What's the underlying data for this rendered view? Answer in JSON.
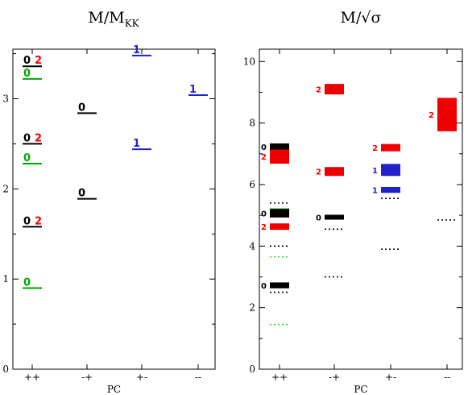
{
  "colors": {
    "black": "#000000",
    "green": "#00aa00",
    "red": "#ee0000",
    "blue": "#2222cc",
    "lightgreen": "#33dd33"
  },
  "chart_data": [
    {
      "type": "scatter",
      "title": "M/M",
      "title_sub": "KK",
      "xlabel": "PC",
      "categories": [
        "++",
        "-+",
        "+-",
        "--"
      ],
      "ylim": [
        0,
        3.55
      ],
      "yticks": [
        "0",
        "1",
        "2",
        "3"
      ],
      "levels": [
        {
          "cat": 0,
          "y": 3.36,
          "color": "black",
          "labels": [
            {
              "t": "0",
              "c": "black"
            },
            {
              "t": "2",
              "c": "red"
            }
          ]
        },
        {
          "cat": 0,
          "y": 3.22,
          "color": "green",
          "labels": [
            {
              "t": "0",
              "c": "green"
            }
          ]
        },
        {
          "cat": 0,
          "y": 2.5,
          "color": "black",
          "labels": [
            {
              "t": "0",
              "c": "black"
            },
            {
              "t": "2",
              "c": "red"
            }
          ]
        },
        {
          "cat": 0,
          "y": 2.28,
          "color": "green",
          "labels": [
            {
              "t": "0",
              "c": "green"
            }
          ]
        },
        {
          "cat": 0,
          "y": 1.58,
          "color": "black",
          "labels": [
            {
              "t": "0",
              "c": "black"
            },
            {
              "t": "2",
              "c": "red"
            }
          ]
        },
        {
          "cat": 0,
          "y": 0.9,
          "color": "green",
          "labels": [
            {
              "t": "0",
              "c": "green"
            }
          ]
        },
        {
          "cat": 1,
          "y": 2.84,
          "color": "black",
          "labels": [
            {
              "t": "0",
              "c": "black"
            }
          ]
        },
        {
          "cat": 1,
          "y": 1.89,
          "color": "black",
          "labels": [
            {
              "t": "0",
              "c": "black"
            }
          ]
        },
        {
          "cat": 2,
          "y": 3.48,
          "color": "blue",
          "labels": [
            {
              "t": "1",
              "c": "blue"
            }
          ]
        },
        {
          "cat": 2,
          "y": 2.44,
          "color": "blue",
          "labels": [
            {
              "t": "1",
              "c": "blue"
            }
          ]
        },
        {
          "cat": 3,
          "y": 3.04,
          "color": "blue",
          "labels": [
            {
              "t": "1",
              "c": "blue"
            }
          ]
        }
      ]
    },
    {
      "type": "scatter",
      "title": "M/√σ",
      "xlabel": "PC",
      "categories": [
        "++",
        "-+",
        "+-",
        "--"
      ],
      "ylim": [
        0,
        10.4
      ],
      "yticks": [
        "0",
        "2",
        "4",
        "6",
        "8",
        "10"
      ],
      "bands": [
        {
          "cat": 0,
          "lo": 7.15,
          "hi": 7.32,
          "color": "black",
          "label": "0"
        },
        {
          "cat": 0,
          "lo": 6.7,
          "hi": 7.12,
          "color": "red",
          "label": "2"
        },
        {
          "cat": 0,
          "lo": 4.95,
          "hi": 5.2,
          "color": "black",
          "label": "0"
        },
        {
          "cat": 0,
          "lo": 4.55,
          "hi": 4.72,
          "color": "red",
          "label": "2"
        },
        {
          "cat": 0,
          "lo": 2.65,
          "hi": 2.8,
          "color": "black",
          "label": "0"
        },
        {
          "cat": 1,
          "lo": 8.95,
          "hi": 9.25,
          "color": "red",
          "label": "2"
        },
        {
          "cat": 1,
          "lo": 6.3,
          "hi": 6.55,
          "color": "red",
          "label": "2"
        },
        {
          "cat": 1,
          "lo": 4.88,
          "hi": 5.0,
          "color": "black",
          "label": "0"
        },
        {
          "cat": 2,
          "lo": 7.1,
          "hi": 7.3,
          "color": "red",
          "label": "2"
        },
        {
          "cat": 2,
          "lo": 6.3,
          "hi": 6.65,
          "color": "blue",
          "label": "1"
        },
        {
          "cat": 2,
          "lo": 5.75,
          "hi": 5.9,
          "color": "blue",
          "label": "1"
        },
        {
          "cat": 3,
          "lo": 7.75,
          "hi": 8.8,
          "color": "red",
          "label": "2"
        }
      ],
      "dotted": [
        {
          "cat": 0,
          "y": 5.4,
          "color": "black"
        },
        {
          "cat": 0,
          "y": 5.22,
          "color": "lightgreen"
        },
        {
          "cat": 0,
          "y": 4.0,
          "color": "black"
        },
        {
          "cat": 0,
          "y": 3.65,
          "color": "lightgreen"
        },
        {
          "cat": 0,
          "y": 2.5,
          "color": "black"
        },
        {
          "cat": 0,
          "y": 1.45,
          "color": "lightgreen"
        },
        {
          "cat": 1,
          "y": 4.55,
          "color": "black"
        },
        {
          "cat": 1,
          "y": 3.0,
          "color": "black"
        },
        {
          "cat": 2,
          "y": 5.55,
          "color": "black"
        },
        {
          "cat": 2,
          "y": 3.9,
          "color": "black"
        },
        {
          "cat": 3,
          "y": 4.85,
          "color": "black"
        }
      ]
    }
  ]
}
